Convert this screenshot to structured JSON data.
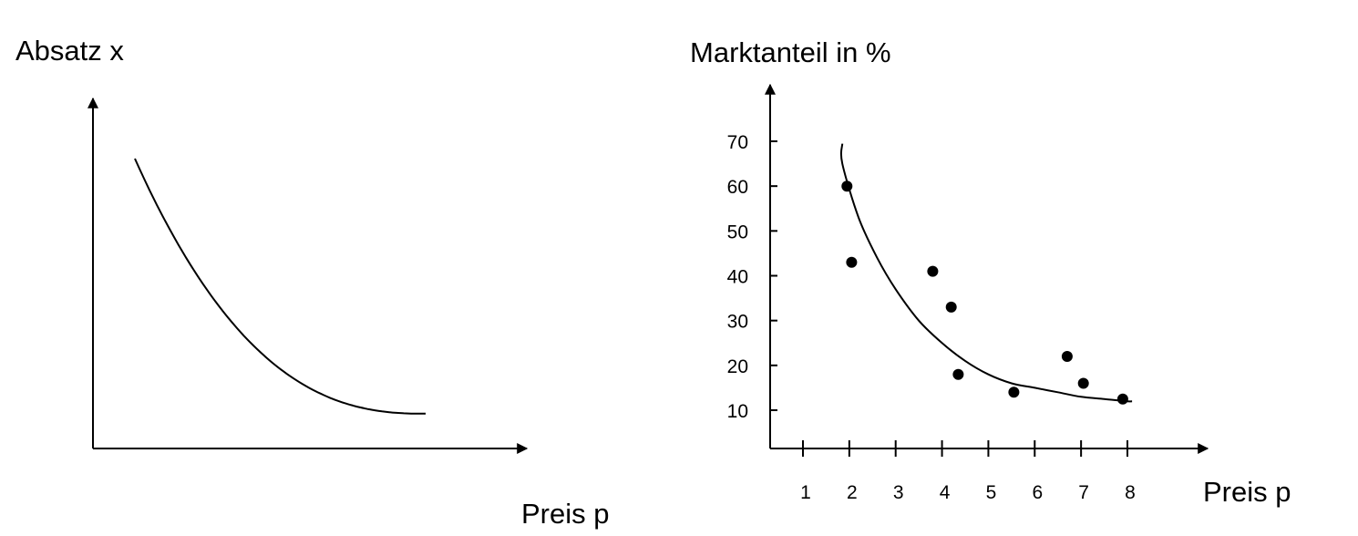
{
  "chart_data": [
    {
      "type": "line",
      "ylabel": "Absatz x",
      "xlabel": "Preis p",
      "grid": false,
      "legend": "none",
      "series": [
        {
          "x": [
            0,
            0.25,
            0.5,
            0.75,
            1
          ],
          "y": [
            1,
            0.52,
            0.3,
            0.17,
            0.12
          ]
        }
      ]
    },
    {
      "type": "scatter",
      "ylabel": "Marktanteil in %",
      "xlabel": "Preis p",
      "grid": false,
      "legend": "none",
      "xlim": [
        0.1,
        8.8
      ],
      "ylim": [
        2,
        80
      ],
      "xticks": [
        "1",
        "2",
        "3",
        "4",
        "5",
        "6",
        "7",
        "8"
      ],
      "yticks": [
        "10",
        "20",
        "30",
        "40",
        "50",
        "60",
        "70"
      ],
      "series": [
        {
          "x": [
            1.95,
            2.05,
            3.8,
            4.2,
            4.35,
            5.55,
            6.7,
            7.05,
            7.9
          ],
          "y": [
            60,
            43,
            41,
            33,
            18,
            14,
            22,
            16,
            12.5
          ]
        }
      ],
      "trend": {
        "x": [
          1.85,
          2.2,
          2.6,
          3.0,
          3.5,
          4.0,
          4.5,
          5.0,
          5.5,
          6.0,
          6.5,
          7.0,
          7.5,
          8.0,
          8.1
        ],
        "y": [
          65,
          53,
          44,
          37,
          30,
          25,
          21,
          18,
          16,
          15,
          14,
          13,
          12.5,
          12,
          12
        ]
      }
    }
  ]
}
